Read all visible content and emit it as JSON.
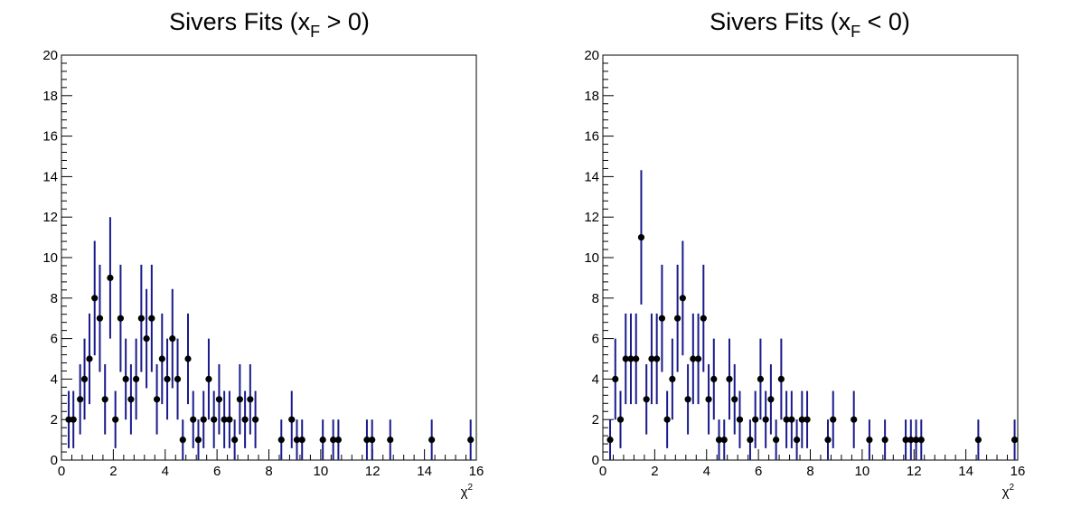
{
  "chart_data": [
    {
      "type": "scatter",
      "title": {
        "prefix": "Sivers Fits (x",
        "sub": "F",
        "suffix": " > 0)"
      },
      "xlabel": {
        "base": "χ",
        "sup": "2"
      },
      "ylabel": "",
      "xlim": [
        0,
        16
      ],
      "ylim": [
        0,
        20
      ],
      "x_ticks": [
        "0",
        "2",
        "4",
        "6",
        "8",
        "10",
        "12",
        "14",
        "16"
      ],
      "y_ticks": [
        "0",
        "2",
        "4",
        "6",
        "8",
        "10",
        "12",
        "14",
        "16",
        "18",
        "20"
      ],
      "grid": false,
      "error_bars": "sqrt(N)",
      "points": [
        [
          0.28,
          2
        ],
        [
          0.46,
          2
        ],
        [
          0.72,
          3
        ],
        [
          0.89,
          4
        ],
        [
          1.08,
          5
        ],
        [
          1.28,
          8
        ],
        [
          1.48,
          7
        ],
        [
          1.68,
          3
        ],
        [
          1.88,
          9
        ],
        [
          2.08,
          2
        ],
        [
          2.28,
          7
        ],
        [
          2.48,
          4
        ],
        [
          2.68,
          3
        ],
        [
          2.88,
          4
        ],
        [
          3.08,
          7
        ],
        [
          3.28,
          6
        ],
        [
          3.48,
          7
        ],
        [
          3.68,
          3
        ],
        [
          3.88,
          5
        ],
        [
          4.08,
          4
        ],
        [
          4.28,
          6
        ],
        [
          4.48,
          4
        ],
        [
          4.68,
          1
        ],
        [
          4.88,
          5
        ],
        [
          5.08,
          2
        ],
        [
          5.28,
          1
        ],
        [
          5.48,
          2
        ],
        [
          5.68,
          4
        ],
        [
          5.88,
          2
        ],
        [
          6.08,
          3
        ],
        [
          6.28,
          2
        ],
        [
          6.48,
          2
        ],
        [
          6.68,
          1
        ],
        [
          6.88,
          3
        ],
        [
          7.08,
          2
        ],
        [
          7.28,
          3
        ],
        [
          7.48,
          2
        ],
        [
          8.48,
          1
        ],
        [
          8.88,
          2
        ],
        [
          9.08,
          1
        ],
        [
          9.28,
          1
        ],
        [
          10.08,
          1
        ],
        [
          10.48,
          1
        ],
        [
          10.68,
          1
        ],
        [
          11.78,
          1
        ],
        [
          11.98,
          1
        ],
        [
          12.68,
          1
        ],
        [
          14.28,
          1
        ],
        [
          15.78,
          1
        ]
      ]
    },
    {
      "type": "scatter",
      "title": {
        "prefix": "Sivers Fits (x",
        "sub": "F",
        "suffix": " < 0)"
      },
      "xlabel": {
        "base": "χ",
        "sup": "2"
      },
      "ylabel": "",
      "xlim": [
        0,
        16
      ],
      "ylim": [
        0,
        20
      ],
      "x_ticks": [
        "0",
        "2",
        "4",
        "6",
        "8",
        "10",
        "12",
        "14",
        "16"
      ],
      "y_ticks": [
        "0",
        "2",
        "4",
        "6",
        "8",
        "10",
        "12",
        "14",
        "16",
        "18",
        "20"
      ],
      "grid": false,
      "error_bars": "sqrt(N)",
      "points": [
        [
          0.28,
          1
        ],
        [
          0.48,
          4
        ],
        [
          0.68,
          2
        ],
        [
          0.88,
          5
        ],
        [
          1.08,
          5
        ],
        [
          1.28,
          5
        ],
        [
          1.48,
          11
        ],
        [
          1.68,
          3
        ],
        [
          1.88,
          5
        ],
        [
          2.08,
          5
        ],
        [
          2.28,
          7
        ],
        [
          2.48,
          2
        ],
        [
          2.68,
          4
        ],
        [
          2.88,
          7
        ],
        [
          3.08,
          8
        ],
        [
          3.28,
          3
        ],
        [
          3.48,
          5
        ],
        [
          3.68,
          5
        ],
        [
          3.88,
          7
        ],
        [
          4.08,
          3
        ],
        [
          4.28,
          4
        ],
        [
          4.48,
          1
        ],
        [
          4.68,
          1
        ],
        [
          4.88,
          4
        ],
        [
          5.08,
          3
        ],
        [
          5.28,
          2
        ],
        [
          5.68,
          1
        ],
        [
          5.88,
          2
        ],
        [
          6.08,
          4
        ],
        [
          6.28,
          2
        ],
        [
          6.48,
          3
        ],
        [
          6.68,
          1
        ],
        [
          6.88,
          4
        ],
        [
          7.08,
          2
        ],
        [
          7.28,
          2
        ],
        [
          7.48,
          1
        ],
        [
          7.68,
          2
        ],
        [
          7.88,
          2
        ],
        [
          8.68,
          1
        ],
        [
          8.88,
          2
        ],
        [
          9.68,
          2
        ],
        [
          10.28,
          1
        ],
        [
          10.88,
          1
        ],
        [
          11.68,
          1
        ],
        [
          11.88,
          1
        ],
        [
          12.08,
          1
        ],
        [
          12.28,
          1
        ],
        [
          14.48,
          1
        ],
        [
          15.88,
          1
        ]
      ]
    }
  ],
  "style": {
    "marker_color": "#000000",
    "error_bar_color": "#1a1a8c",
    "axis_color": "#000000"
  }
}
